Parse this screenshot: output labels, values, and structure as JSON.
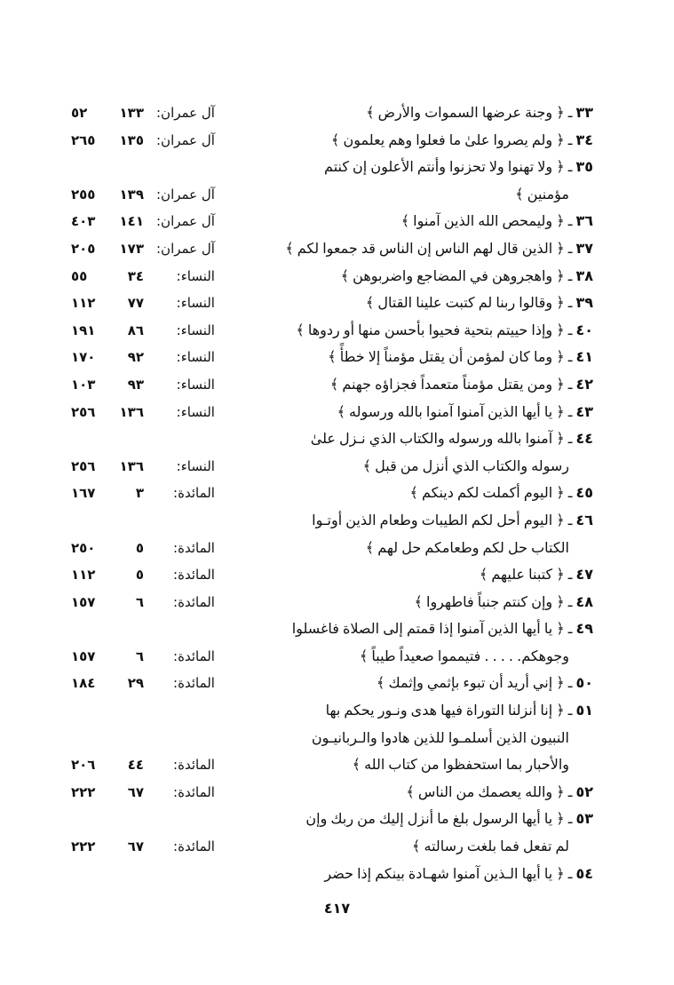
{
  "entries": [
    {
      "num": "٣٣",
      "lines": [
        "﴿ وجنة عرضها السموات والأرض ﴾"
      ],
      "sura": "آل عمران:",
      "verse": "١٣٣",
      "page": "٥٢"
    },
    {
      "num": "٣٤",
      "lines": [
        "﴿ ولم يصروا علىٰ ما فعلوا وهم يعلمون ﴾"
      ],
      "sura": "آل عمران:",
      "verse": "١٣٥",
      "page": "٢٦٥"
    },
    {
      "num": "٣٥",
      "lines": [
        "﴿ ولا تهنوا ولا تحزنوا وأنتم الأعلون إن كنتم",
        "مؤمنين ﴾"
      ],
      "sura": "آل عمران:",
      "verse": "١٣٩",
      "page": "٢٥٥"
    },
    {
      "num": "٣٦",
      "lines": [
        "﴿ وليمحص الله الذين آمنوا ﴾"
      ],
      "sura": "آل عمران:",
      "verse": "١٤١",
      "page": "٤٠٣"
    },
    {
      "num": "٣٧",
      "lines": [
        "﴿ الذين قال لهم الناس إن الناس قد جمعوا لكم ﴾"
      ],
      "sura": "آل عمران:",
      "verse": "١٧٣",
      "page": "٢٠٥"
    },
    {
      "num": "٣٨",
      "lines": [
        "﴿ واهجروهن في المضاجع واضربوهن ﴾"
      ],
      "sura": "النساء:",
      "verse": "٣٤",
      "page": "٥٥"
    },
    {
      "num": "٣٩",
      "lines": [
        "﴿ وقالوا ربنا لم كتبت علينا القتال ﴾"
      ],
      "sura": "النساء:",
      "verse": "٧٧",
      "page": "١١٢"
    },
    {
      "num": "٤٠",
      "lines": [
        "﴿ وإذا حييتم بتحية فحيوا بأحسن منها أو ردوها ﴾"
      ],
      "sura": "النساء:",
      "verse": "٨٦",
      "page": "١٩١"
    },
    {
      "num": "٤١",
      "lines": [
        "﴿ وما كان لمؤمن أن يقتل مؤمناً إلا خطأً ﴾"
      ],
      "sura": "النساء:",
      "verse": "٩٢",
      "page": "١٧٠"
    },
    {
      "num": "٤٢",
      "lines": [
        "﴿ ومن يقتل مؤمناً متعمداً فجزاؤه جهنم ﴾"
      ],
      "sura": "النساء:",
      "verse": "٩٣",
      "page": "١٠٣"
    },
    {
      "num": "٤٣",
      "lines": [
        "﴿ يا أيها الذين آمنوا آمنوا بالله ورسوله ﴾"
      ],
      "sura": "النساء:",
      "verse": "١٣٦",
      "page": "٢٥٦"
    },
    {
      "num": "٤٤",
      "lines": [
        "﴿ آمنوا بالله ورسوله والكتاب الذي نـزل علىٰ",
        "رسوله والكتاب الذي أنزل من قبل ﴾"
      ],
      "sura": "النساء:",
      "verse": "١٣٦",
      "page": "٢٥٦"
    },
    {
      "num": "٤٥",
      "lines": [
        "﴿ اليوم أكملت لكم دينكم ﴾"
      ],
      "sura": "المائدة:",
      "verse": "٣",
      "page": "١٦٧"
    },
    {
      "num": "٤٦",
      "lines": [
        "﴿ اليوم أحل لكم الطيبات وطعام الذين أوتـوا",
        "الكتاب حل لكم وطعامكم حل لهم ﴾"
      ],
      "sura": "المائدة:",
      "verse": "٥",
      "page": "٢٥٠"
    },
    {
      "num": "٤٧",
      "lines": [
        "﴿ كتبنا عليهم ﴾"
      ],
      "sura": "المائدة:",
      "verse": "٥",
      "page": "١١٢"
    },
    {
      "num": "٤٨",
      "lines": [
        "﴿ وإن كنتم جنباً فاطهروا ﴾"
      ],
      "sura": "المائدة:",
      "verse": "٦",
      "page": "١٥٧"
    },
    {
      "num": "٤٩",
      "lines": [
        "﴿ يا أيها الذين آمنوا إذا قمتم إلى الصلاة فاغسلوا",
        "وجوهكم. . . . . فتيمموا صعيداً طيباً ﴾"
      ],
      "sura": "المائدة:",
      "verse": "٦",
      "page": "١٥٧"
    },
    {
      "num": "٥٠",
      "lines": [
        "﴿ إني أريد أن تبوء بإثمي وإثمك ﴾"
      ],
      "sura": "المائدة:",
      "verse": "٢٩",
      "page": "١٨٤"
    },
    {
      "num": "٥١",
      "lines": [
        "﴿ إنا أنزلنا التوراة فيها هدى ونـور يحكم بها",
        "النبيون الذين أسلمـوا للذين هادوا والـربانيـون",
        "والأحبار بما استحفظوا من كتاب الله ﴾"
      ],
      "sura": "المائدة:",
      "verse": "٤٤",
      "page": "٢٠٦"
    },
    {
      "num": "٥٢",
      "lines": [
        "﴿ والله يعصمك من الناس ﴾"
      ],
      "sura": "المائدة:",
      "verse": "٦٧",
      "page": "٢٢٢"
    },
    {
      "num": "٥٣",
      "lines": [
        "﴿ يا أيها الرسول بلغ ما أنزل إليك من ربك وإن",
        "لم تفعل فما بلغت رسالته ﴾"
      ],
      "sura": "المائدة:",
      "verse": "٦٧",
      "page": "٢٢٢"
    },
    {
      "num": "٥٤",
      "lines": [
        "﴿ يا أيها الـذين آمنوا شهـادة بينكم إذا حضر"
      ]
    }
  ],
  "page_number": "٤١٧"
}
